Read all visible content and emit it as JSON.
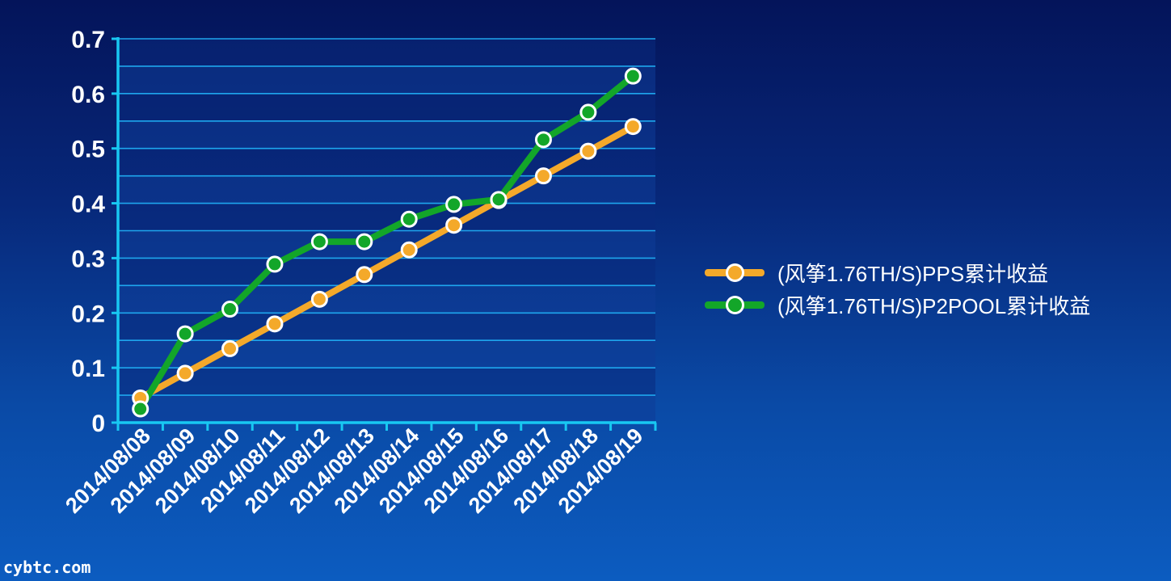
{
  "colors": {
    "background_top": "#04145a",
    "background_bottom": "#0c5cc0",
    "axis": "#18c8f2",
    "gridline": "#1ea6ee",
    "band_dark": "#0a2a7e",
    "band_light": "#0f3c98",
    "pps_series": "#f4a92a",
    "p2pool_series": "#13a629",
    "marker_border": "#ffffff",
    "text": "#ffffff"
  },
  "chart_data": {
    "type": "line",
    "x": [
      "2014/08/08",
      "2014/08/09",
      "2014/08/10",
      "2014/08/11",
      "2014/08/12",
      "2014/08/13",
      "2014/08/14",
      "2014/08/15",
      "2014/08/16",
      "2014/08/17",
      "2014/08/18",
      "2014/08/19"
    ],
    "yticks": [
      "0",
      "0.1",
      "0.2",
      "0.3",
      "0.4",
      "0.5",
      "0.6",
      "0.7"
    ],
    "ylim": [
      0,
      0.7
    ],
    "grid": true,
    "legend_position": "right",
    "series": [
      {
        "name": "(风筝1.76TH/S)PPS累计收益",
        "color": "#f4a92a",
        "values": [
          0.045,
          0.09,
          0.135,
          0.18,
          0.225,
          0.27,
          0.315,
          0.36,
          0.405,
          0.45,
          0.495,
          0.54
        ]
      },
      {
        "name": "(风筝1.76TH/S)P2POOL累计收益",
        "color": "#13a629",
        "values": [
          0.025,
          0.162,
          0.207,
          0.289,
          0.33,
          0.33,
          0.371,
          0.398,
          0.407,
          0.516,
          0.566,
          0.632
        ]
      }
    ]
  },
  "watermark": "cybtc.com"
}
